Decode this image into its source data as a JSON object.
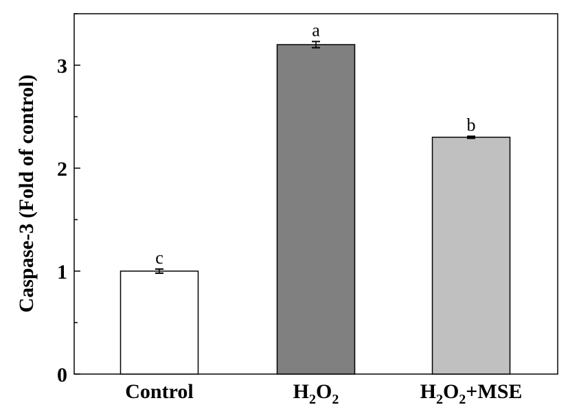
{
  "chart_data": {
    "type": "bar",
    "title": "",
    "xlabel": "",
    "ylabel": "Caspase-3 (Fold of control)",
    "ylim": [
      0,
      3.5
    ],
    "yticks": [
      0,
      1,
      2,
      3
    ],
    "ytick_labels": [
      "0",
      "1",
      "2",
      "3"
    ],
    "grid": false,
    "categories": [
      {
        "label": "Control",
        "parts": [
          {
            "t": "Control"
          }
        ]
      },
      {
        "label": "H2O2",
        "parts": [
          {
            "t": "H"
          },
          {
            "t": "2",
            "sub": true
          },
          {
            "t": "O"
          },
          {
            "t": "2",
            "sub": true
          }
        ]
      },
      {
        "label": "H2O2+MSE",
        "parts": [
          {
            "t": "H"
          },
          {
            "t": "2",
            "sub": true
          },
          {
            "t": "O"
          },
          {
            "t": "2",
            "sub": true
          },
          {
            "t": "+MSE"
          }
        ]
      }
    ],
    "values": [
      1.0,
      3.2,
      2.3
    ],
    "errors": [
      0.02,
      0.03,
      0.01
    ],
    "significance_letters": [
      "c",
      "a",
      "b"
    ],
    "bar_colors": [
      "#ffffff",
      "#808080",
      "#c0c0c0"
    ]
  }
}
